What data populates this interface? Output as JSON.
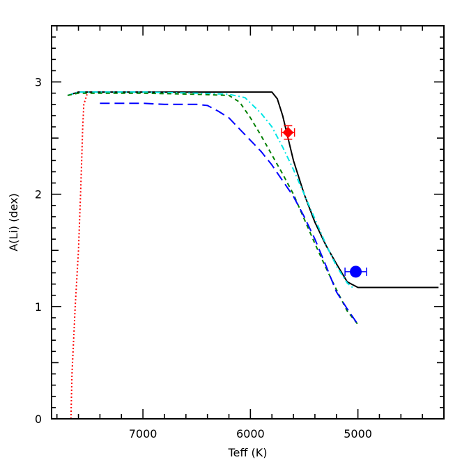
{
  "chart_data": {
    "type": "line",
    "xlabel": "Teff (K)",
    "ylabel": "A(Li) (dex)",
    "xlim": [
      7850,
      4200
    ],
    "ylim": [
      0,
      3.5
    ],
    "x_reversed": true,
    "xticks": [
      7000,
      6000,
      5000
    ],
    "xtick_labels": [
      "7000",
      "6000",
      "5000"
    ],
    "yticks": [
      0,
      1,
      2,
      3
    ],
    "ytick_labels": [
      "0",
      "1",
      "2",
      "3"
    ],
    "grid": false,
    "series": [
      {
        "color": "#000000",
        "dash": "solid",
        "points": [
          [
            7700,
            2.88
          ],
          [
            7600,
            2.91
          ],
          [
            7000,
            2.91
          ],
          [
            6500,
            2.91
          ],
          [
            6000,
            2.91
          ],
          [
            5800,
            2.91
          ],
          [
            5750,
            2.85
          ],
          [
            5700,
            2.7
          ],
          [
            5650,
            2.5
          ],
          [
            5600,
            2.3
          ],
          [
            5500,
            2.0
          ],
          [
            5400,
            1.75
          ],
          [
            5300,
            1.55
          ],
          [
            5200,
            1.38
          ],
          [
            5100,
            1.22
          ],
          [
            5000,
            1.17
          ],
          [
            4800,
            1.17
          ],
          [
            4500,
            1.17
          ],
          [
            4250,
            1.17
          ]
        ]
      },
      {
        "color": "#00e5e5",
        "dash": "dashdot",
        "points": [
          [
            7700,
            2.88
          ],
          [
            7600,
            2.91
          ],
          [
            7000,
            2.91
          ],
          [
            6500,
            2.9
          ],
          [
            6200,
            2.89
          ],
          [
            6050,
            2.86
          ],
          [
            5900,
            2.72
          ],
          [
            5800,
            2.6
          ],
          [
            5700,
            2.42
          ],
          [
            5600,
            2.22
          ],
          [
            5500,
            2.0
          ],
          [
            5400,
            1.78
          ],
          [
            5300,
            1.56
          ],
          [
            5200,
            1.36
          ],
          [
            5100,
            1.21
          ],
          [
            5050,
            1.17
          ]
        ]
      },
      {
        "color": "#008000",
        "dash": "dashed",
        "points": [
          [
            7700,
            2.88
          ],
          [
            7600,
            2.9
          ],
          [
            7000,
            2.9
          ],
          [
            6500,
            2.89
          ],
          [
            6200,
            2.88
          ],
          [
            6100,
            2.82
          ],
          [
            6000,
            2.68
          ],
          [
            5900,
            2.52
          ],
          [
            5800,
            2.35
          ],
          [
            5700,
            2.18
          ],
          [
            5600,
            2.0
          ],
          [
            5500,
            1.78
          ],
          [
            5400,
            1.56
          ],
          [
            5300,
            1.35
          ],
          [
            5200,
            1.15
          ],
          [
            5100,
            0.96
          ],
          [
            5000,
            0.84
          ]
        ]
      },
      {
        "color": "#0000ff",
        "dash": "longdash",
        "points": [
          [
            7400,
            2.81
          ],
          [
            7000,
            2.81
          ],
          [
            6800,
            2.8
          ],
          [
            6500,
            2.8
          ],
          [
            6400,
            2.79
          ],
          [
            6300,
            2.74
          ],
          [
            6200,
            2.68
          ],
          [
            6100,
            2.58
          ],
          [
            6000,
            2.48
          ],
          [
            5900,
            2.38
          ],
          [
            5800,
            2.26
          ],
          [
            5700,
            2.12
          ],
          [
            5600,
            1.98
          ],
          [
            5500,
            1.8
          ],
          [
            5400,
            1.6
          ],
          [
            5300,
            1.37
          ],
          [
            5200,
            1.13
          ],
          [
            5100,
            0.98
          ],
          [
            5000,
            0.84
          ]
        ]
      },
      {
        "color": "#ff0000",
        "dash": "dotted",
        "points": [
          [
            7670,
            0.0
          ],
          [
            7660,
            0.4
          ],
          [
            7640,
            0.8
          ],
          [
            7630,
            1.0
          ],
          [
            7600,
            1.5
          ],
          [
            7580,
            2.0
          ],
          [
            7570,
            2.3
          ],
          [
            7560,
            2.6
          ],
          [
            7550,
            2.8
          ],
          [
            7520,
            2.89
          ]
        ]
      }
    ],
    "points": [
      {
        "name": "diamond-point",
        "x": 5650,
        "y": 2.55,
        "xerr": 60,
        "yerr": 0.06,
        "color": "#ff0000",
        "marker": "diamond"
      },
      {
        "name": "circle-point",
        "x": 5020,
        "y": 1.31,
        "xerr": 100,
        "yerr": 0.03,
        "color": "#0000ff",
        "marker": "circle"
      }
    ]
  }
}
